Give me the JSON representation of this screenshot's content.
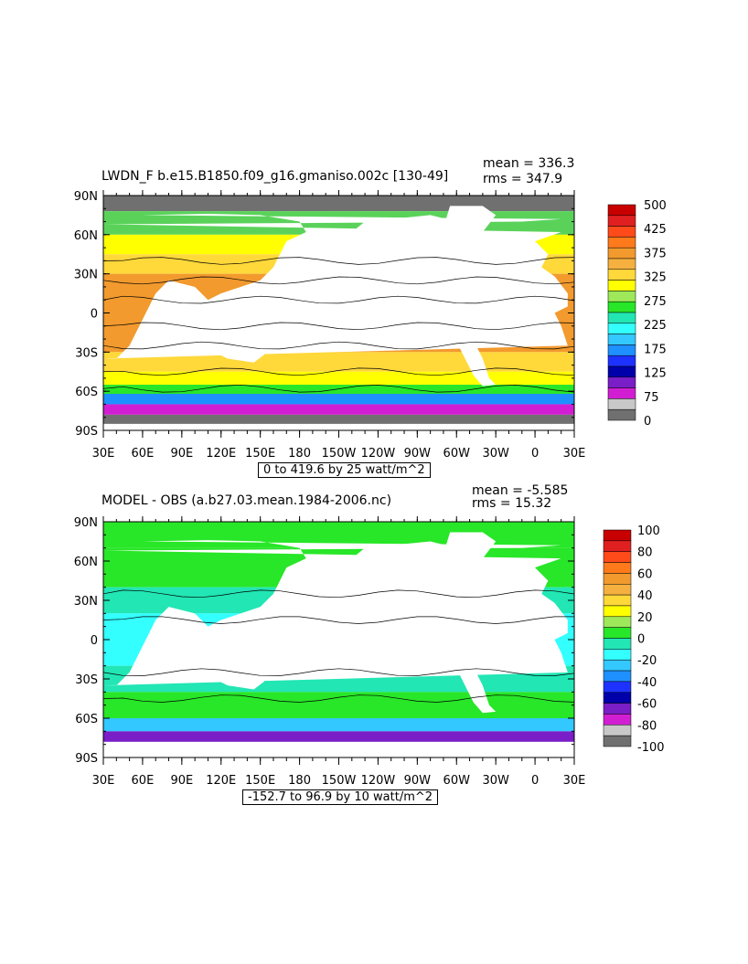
{
  "chart_data": [
    {
      "type": "heatmap",
      "title": "LWDN_F b.e15.B1850.f09_g16.gmaniso.002c [130-49]",
      "stats": [
        "mean = 336.3",
        "rms = 347.9"
      ],
      "range_label": "0 to 419.6 by 25 watt/m^2",
      "y_ticks": [
        "90N",
        "60N",
        "30N",
        "0",
        "30S",
        "60S",
        "90S"
      ],
      "x_ticks": [
        "30E",
        "60E",
        "90E",
        "120E",
        "150E",
        "180",
        "150W",
        "120W",
        "90W",
        "60W",
        "30W",
        "0",
        "30E"
      ],
      "colorbar_labels": [
        "500",
        "425",
        "375",
        "325",
        "275",
        "225",
        "175",
        "125",
        "75",
        "0"
      ],
      "colorbar_colors": [
        "#c80000",
        "#e02020",
        "#ff4a1a",
        "#ff7a1a",
        "#f29a2e",
        "#f5b040",
        "#ffd83a",
        "#ffff00",
        "#9ee85a",
        "#28e628",
        "#22e6b4",
        "#33ffff",
        "#33c8ff",
        "#1e90ff",
        "#1e32ff",
        "#0000aa",
        "#7a1ec8",
        "#d21ed2",
        "#c8c8c8",
        "#707070"
      ],
      "zones": [
        {
          "lat": [
            90,
            78
          ],
          "value": 0,
          "color": "#707070"
        },
        {
          "lat": [
            78,
            60
          ],
          "value": 250,
          "color": "#5ad25a"
        },
        {
          "lat": [
            60,
            45
          ],
          "value": 325,
          "color": "#ffff00"
        },
        {
          "lat": [
            45,
            30
          ],
          "value": 350,
          "color": "#ffd83a"
        },
        {
          "lat": [
            30,
            -30
          ],
          "value": 400,
          "color": "#f29a2e"
        },
        {
          "lat": [
            -30,
            -45
          ],
          "value": 350,
          "color": "#ffd83a"
        },
        {
          "lat": [
            -45,
            -55
          ],
          "value": 325,
          "color": "#ffff00"
        },
        {
          "lat": [
            -55,
            -62
          ],
          "value": 275,
          "color": "#28e628"
        },
        {
          "lat": [
            -62,
            -70
          ],
          "value": 175,
          "color": "#1e90ff"
        },
        {
          "lat": [
            -70,
            -78
          ],
          "value": 75,
          "color": "#d21ed2"
        },
        {
          "lat": [
            -78,
            -85
          ],
          "value": 0,
          "color": "#707070"
        }
      ]
    },
    {
      "type": "heatmap",
      "title": "MODEL - OBS (a.b27.03.mean.1984-2006.nc)",
      "stats": [
        "mean = -5.585",
        "rms = 15.32"
      ],
      "range_label": "-152.7 to 96.9 by 10 watt/m^2",
      "y_ticks": [
        "90N",
        "60N",
        "30N",
        "0",
        "30S",
        "60S",
        "90S"
      ],
      "x_ticks": [
        "30E",
        "60E",
        "90E",
        "120E",
        "150E",
        "180",
        "150W",
        "120W",
        "90W",
        "60W",
        "30W",
        "0",
        "30E"
      ],
      "colorbar_labels": [
        "100",
        "80",
        "60",
        "40",
        "20",
        "0",
        "-20",
        "-40",
        "-60",
        "-80",
        "-100"
      ],
      "colorbar_colors": [
        "#c80000",
        "#e02020",
        "#ff4a1a",
        "#ff7a1a",
        "#f29a2e",
        "#f5b040",
        "#ffd83a",
        "#ffff00",
        "#9ee85a",
        "#28e628",
        "#22e6b4",
        "#33ffff",
        "#33c8ff",
        "#1e90ff",
        "#1e32ff",
        "#0000aa",
        "#7a1ec8",
        "#d21ed2",
        "#c8c8c8",
        "#707070"
      ],
      "zones": [
        {
          "lat": [
            90,
            70
          ],
          "value": 5,
          "color": "#28e628"
        },
        {
          "lat": [
            70,
            40
          ],
          "value": 5,
          "color": "#28e628"
        },
        {
          "lat": [
            40,
            20
          ],
          "value": -5,
          "color": "#22e6b4"
        },
        {
          "lat": [
            20,
            -20
          ],
          "value": -10,
          "color": "#33ffff"
        },
        {
          "lat": [
            -20,
            -40
          ],
          "value": -5,
          "color": "#22e6b4"
        },
        {
          "lat": [
            -40,
            -60
          ],
          "value": 5,
          "color": "#28e628"
        },
        {
          "lat": [
            -60,
            -70
          ],
          "value": -20,
          "color": "#33c8ff"
        },
        {
          "lat": [
            -70,
            -78
          ],
          "value": -60,
          "color": "#7a1ec8"
        }
      ]
    }
  ]
}
